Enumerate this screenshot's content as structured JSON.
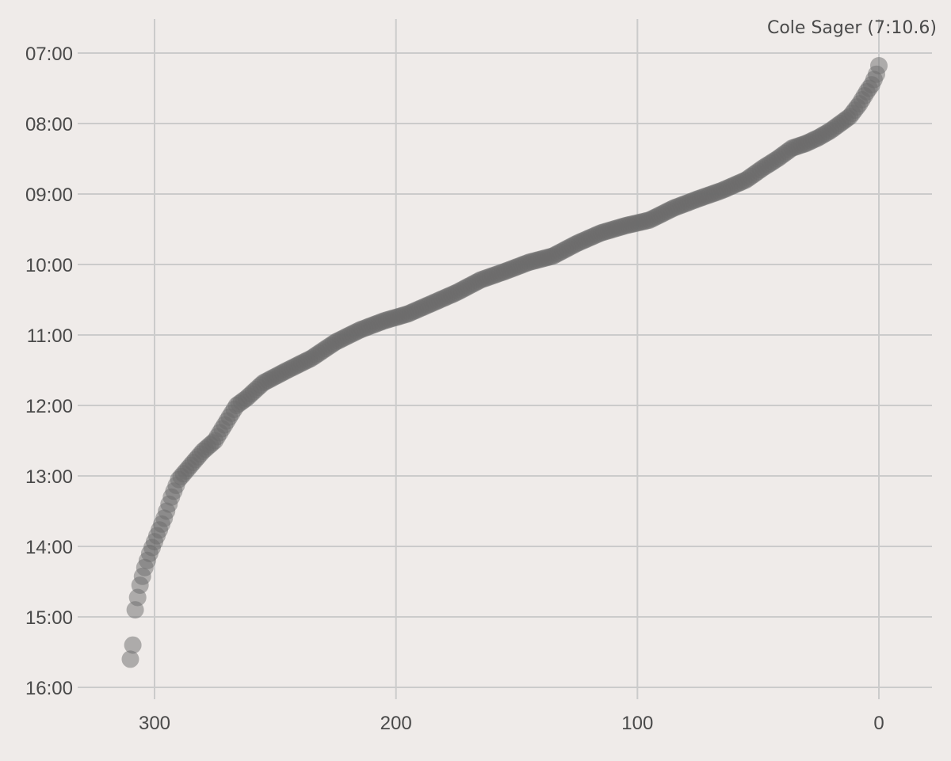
{
  "chart_data": {
    "type": "scatter",
    "title": "",
    "xlabel": "",
    "ylabel": "",
    "x_axis": {
      "reversed": true,
      "ticks": [
        300,
        200,
        100,
        0
      ],
      "tick_labels": [
        "300",
        "200",
        "100",
        "0"
      ],
      "xlim": [
        335,
        -21
      ]
    },
    "y_axis": {
      "reversed": true,
      "unit": "minutes",
      "ticks": [
        7,
        8,
        9,
        10,
        11,
        12,
        13,
        14,
        15,
        16
      ],
      "tick_labels": [
        "07:00",
        "08:00",
        "09:00",
        "10:00",
        "11:00",
        "12:00",
        "13:00",
        "14:00",
        "15:00",
        "16:00"
      ],
      "ylim": [
        6.5,
        16.2
      ]
    },
    "grid": true,
    "annotation": {
      "text": "Cole Sager (7:10.6)",
      "x": 0,
      "y": 7.177
    },
    "marker_color": "#6b6b6b",
    "anchors": [
      [
        0,
        7.18
      ],
      [
        1,
        7.3
      ],
      [
        3,
        7.45
      ],
      [
        5,
        7.55
      ],
      [
        8,
        7.72
      ],
      [
        12,
        7.9
      ],
      [
        16,
        8.0
      ],
      [
        20,
        8.1
      ],
      [
        25,
        8.2
      ],
      [
        30,
        8.28
      ],
      [
        36,
        8.35
      ],
      [
        42,
        8.5
      ],
      [
        48,
        8.63
      ],
      [
        55,
        8.8
      ],
      [
        65,
        8.95
      ],
      [
        75,
        9.07
      ],
      [
        85,
        9.2
      ],
      [
        95,
        9.37
      ],
      [
        105,
        9.45
      ],
      [
        115,
        9.55
      ],
      [
        125,
        9.7
      ],
      [
        135,
        9.88
      ],
      [
        145,
        9.97
      ],
      [
        155,
        10.1
      ],
      [
        165,
        10.22
      ],
      [
        175,
        10.4
      ],
      [
        185,
        10.55
      ],
      [
        195,
        10.7
      ],
      [
        205,
        10.8
      ],
      [
        215,
        10.93
      ],
      [
        225,
        11.1
      ],
      [
        235,
        11.33
      ],
      [
        245,
        11.5
      ],
      [
        255,
        11.68
      ],
      [
        262,
        11.9
      ],
      [
        266,
        12.0
      ],
      [
        270,
        12.22
      ],
      [
        275,
        12.5
      ],
      [
        280,
        12.65
      ],
      [
        285,
        12.85
      ],
      [
        290,
        13.05
      ],
      [
        293,
        13.3
      ],
      [
        296,
        13.6
      ],
      [
        299,
        13.85
      ],
      [
        302,
        14.1
      ],
      [
        304,
        14.3
      ],
      [
        306,
        14.55
      ],
      [
        308,
        14.9
      ],
      [
        309,
        15.4
      ],
      [
        310,
        15.6
      ]
    ]
  }
}
